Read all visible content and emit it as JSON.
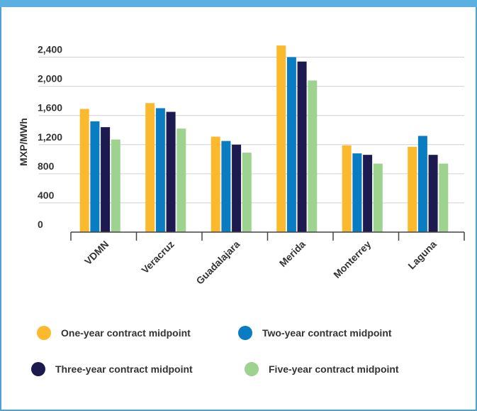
{
  "colors": {
    "one_year": "#fbb92e",
    "two_year": "#0a7cc1",
    "three_year": "#1c1a4f",
    "five_year": "#9dd38f",
    "frame": "#4ea3d6"
  },
  "chart_data": {
    "type": "bar",
    "title": "",
    "xlabel": "",
    "ylabel": "MXP/MWh",
    "ylim": [
      0,
      2600
    ],
    "yticks": [
      "0",
      "400",
      "800",
      "1,200",
      "1,600",
      "2,000",
      "2,400"
    ],
    "ytick_values": [
      0,
      400,
      800,
      1200,
      1600,
      2000,
      2400
    ],
    "categories": [
      "VDMN",
      "Veracruz",
      "Guadalajara",
      "Merida",
      "Monterrey",
      "Laguna"
    ],
    "grid": true,
    "legend_position": "bottom",
    "series": [
      {
        "name": "One-year contract midpoint",
        "color_key": "one_year",
        "values": [
          1690,
          1770,
          1310,
          2560,
          1190,
          1170
        ]
      },
      {
        "name": "Two-year contract midpoint",
        "color_key": "two_year",
        "values": [
          1520,
          1700,
          1250,
          2400,
          1080,
          1320
        ]
      },
      {
        "name": "Three-year contract midpoint",
        "color_key": "three_year",
        "values": [
          1440,
          1650,
          1200,
          2340,
          1060,
          1060
        ]
      },
      {
        "name": "Five-year contract midpoint",
        "color_key": "five_year",
        "values": [
          1270,
          1420,
          1090,
          2080,
          940,
          940
        ]
      }
    ]
  }
}
